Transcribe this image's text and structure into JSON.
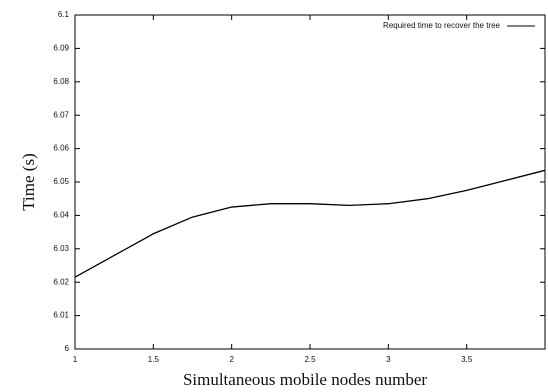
{
  "chart_data": {
    "type": "line",
    "x_label": "Simultaneous mobile nodes number",
    "y_label": "Time (s)",
    "x": [
      1,
      1.25,
      1.5,
      1.75,
      2,
      2.25,
      2.5,
      2.75,
      3,
      3.25,
      3.5,
      3.75,
      4
    ],
    "series": [
      {
        "name": "Required time to recover the tree",
        "color": "#000000",
        "values": [
          6.0215,
          6.028,
          6.0345,
          6.0395,
          6.0425,
          6.0435,
          6.0435,
          6.043,
          6.0435,
          6.045,
          6.0475,
          6.0505,
          6.0535
        ]
      }
    ],
    "xlim": [
      1,
      4
    ],
    "xticks": [
      1,
      1.5,
      2,
      2.5,
      3,
      3.5
    ],
    "ylim": [
      6,
      6.1
    ],
    "yticks": [
      6,
      6.01,
      6.02,
      6.03,
      6.04,
      6.05,
      6.06,
      6.07,
      6.08,
      6.09,
      6.1
    ],
    "legend": "top-right",
    "grid": false
  }
}
